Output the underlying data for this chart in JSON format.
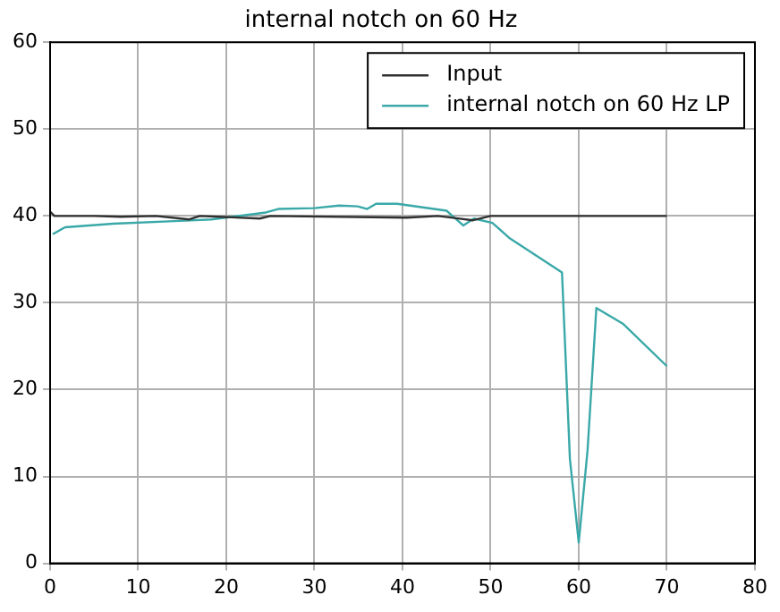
{
  "chart_data": {
    "type": "line",
    "title": "internal notch on 60 Hz",
    "xlim": [
      0,
      80
    ],
    "xticks": [
      0,
      10,
      20,
      30,
      40,
      50,
      60,
      70,
      80
    ],
    "ylim": [
      0,
      60
    ],
    "yticks": [
      0,
      10,
      20,
      30,
      40,
      50,
      60
    ],
    "grid": true,
    "legend": "top right",
    "line_style": "solid",
    "marker": "none",
    "series": [
      {
        "name": "Input",
        "color": "#303030",
        "x": [
          0,
          0.5,
          5,
          8,
          12,
          15.8,
          17,
          23.8,
          25,
          40.5,
          44,
          48,
          50,
          60,
          70
        ],
        "values": [
          40.5,
          40,
          40,
          39.9,
          40,
          39.6,
          40,
          39.7,
          40,
          39.8,
          40,
          39.5,
          40,
          40,
          40
        ]
      },
      {
        "name": "internal notch on 60 Hz LP",
        "color": "#3aa8a8",
        "x": [
          0.3,
          1.7,
          7.2,
          14.1,
          18.3,
          24.5,
          25.9,
          30,
          32.8,
          34.9,
          36,
          37,
          39.4,
          45,
          46.9,
          48.1,
          50.2,
          52.2,
          58.1,
          59,
          60,
          61,
          62,
          65,
          70
        ],
        "values": [
          37.9,
          38.7,
          39.1,
          39.4,
          39.6,
          40.4,
          40.8,
          40.9,
          41.2,
          41.1,
          40.8,
          41.4,
          41.4,
          40.6,
          38.9,
          39.7,
          39.2,
          37.4,
          33.5,
          12,
          2.4,
          13,
          29.4,
          27.6,
          22.7
        ]
      }
    ]
  }
}
